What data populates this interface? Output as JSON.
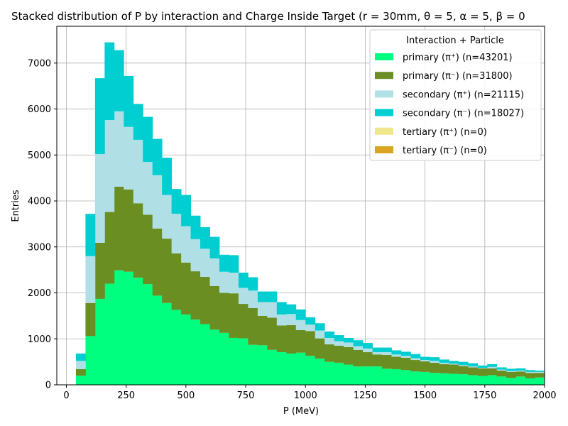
{
  "chart_data": {
    "type": "bar",
    "stacked": true,
    "histogram": true,
    "title": "Stacked distribution of P by interaction and Charge Inside Target (r = 30mm, θ = 5, α = 5, β = 0)",
    "title_visible": "Stacked distribution of P by interaction and Charge Inside Target (r = 30mm, θ = 5, α = 5, β = 0",
    "xlabel": "P (MeV)",
    "ylabel": "Entries",
    "xlim": [
      -40,
      2000
    ],
    "ylim": [
      0,
      7800
    ],
    "xticks": [
      0,
      250,
      500,
      750,
      1000,
      1250,
      1500,
      1750,
      2000
    ],
    "yticks": [
      0,
      1000,
      2000,
      3000,
      4000,
      5000,
      6000,
      7000
    ],
    "grid": true,
    "legend_title": "Interaction + Particle",
    "legend_position": "top-right",
    "bin_edges": [
      40,
      80,
      120,
      160,
      200,
      240,
      280,
      320,
      360,
      400,
      440,
      480,
      520,
      560,
      600,
      640,
      680,
      720,
      760,
      800,
      840,
      880,
      920,
      960,
      1000,
      1040,
      1080,
      1120,
      1160,
      1200,
      1240,
      1280,
      1320,
      1360,
      1400,
      1440,
      1480,
      1520,
      1560,
      1600,
      1640,
      1680,
      1720,
      1760,
      1800,
      1840,
      1880,
      1920,
      1960,
      2000
    ],
    "series": [
      {
        "name": "primary (π⁺) (n=43201)",
        "color": "#00ff7f",
        "values": [
          200,
          1060,
          1870,
          2200,
          2490,
          2460,
          2330,
          2190,
          1940,
          1780,
          1630,
          1530,
          1420,
          1320,
          1200,
          1130,
          1020,
          1010,
          870,
          860,
          760,
          710,
          680,
          700,
          630,
          570,
          500,
          480,
          440,
          400,
          400,
          400,
          350,
          340,
          320,
          290,
          280,
          260,
          250,
          240,
          230,
          210,
          190,
          210,
          180,
          150,
          180,
          140,
          160
        ]
      },
      {
        "name": "primary (π⁻) (n=31800)",
        "color": "#6b8e23",
        "values": [
          140,
          720,
          1220,
          1560,
          1820,
          1790,
          1620,
          1510,
          1460,
          1400,
          1230,
          1130,
          1050,
          1030,
          950,
          870,
          970,
          750,
          800,
          640,
          700,
          580,
          620,
          490,
          540,
          440,
          380,
          370,
          380,
          360,
          310,
          260,
          300,
          270,
          270,
          250,
          230,
          220,
          200,
          200,
          180,
          170,
          170,
          150,
          130,
          130,
          110,
          120,
          100
        ]
      },
      {
        "name": "secondary (π⁺) (n=21115)",
        "color": "#b0e0e6",
        "values": [
          180,
          1020,
          1930,
          2000,
          1640,
          1360,
          1380,
          1150,
          1160,
          950,
          860,
          790,
          700,
          610,
          600,
          460,
          450,
          350,
          380,
          300,
          340,
          240,
          240,
          220,
          140,
          170,
          140,
          100,
          100,
          80,
          80,
          50,
          60,
          50,
          40,
          40,
          30,
          40,
          30,
          20,
          20,
          20,
          10,
          30,
          20,
          20,
          20,
          20,
          20
        ]
      },
      {
        "name": "secondary (π⁻) (n=18027)",
        "color": "#00ced1",
        "values": [
          160,
          920,
          1650,
          1690,
          1330,
          1110,
          780,
          980,
          790,
          810,
          540,
          680,
          510,
          470,
          470,
          370,
          380,
          330,
          290,
          230,
          230,
          270,
          210,
          230,
          160,
          160,
          140,
          130,
          100,
          130,
          120,
          100,
          100,
          90,
          90,
          90,
          70,
          80,
          70,
          60,
          70,
          70,
          50,
          60,
          50,
          50,
          50,
          40,
          30
        ]
      },
      {
        "name": "tertiary (π⁺) (n=0)",
        "color": "#f0e68c",
        "values": []
      },
      {
        "name": "tertiary (π⁻) (n=0)",
        "color": "#daa520",
        "values": []
      }
    ]
  }
}
